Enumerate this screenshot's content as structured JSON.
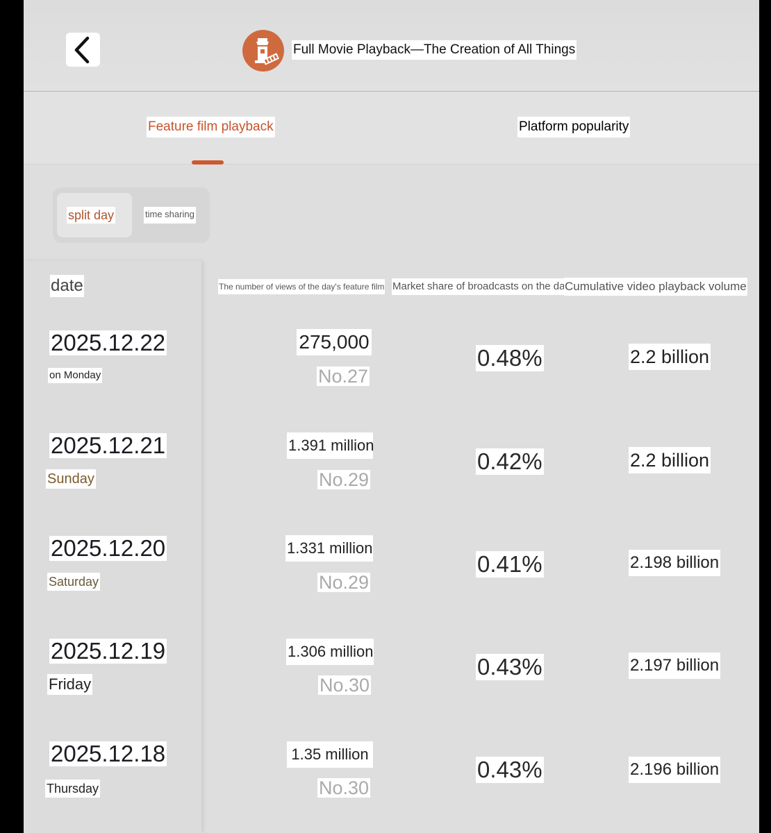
{
  "header": {
    "title": "Full Movie Playback—The Creation of All Things"
  },
  "tabs": [
    {
      "label": "Feature film playback",
      "active": true
    },
    {
      "label": "Platform popularity",
      "active": false
    }
  ],
  "segment": {
    "options": [
      "split day",
      "time sharing"
    ],
    "selected": "split day"
  },
  "columns": {
    "date": "date",
    "views": "The number of views of the day's feature film",
    "share": "Market share of broadcasts on the day",
    "cumulative": "Cumulative video playback volume"
  },
  "rows": [
    {
      "date": "2025.12.22",
      "day": "on Monday",
      "views": "275,000",
      "rank": "No.27",
      "share": "0.48%",
      "cumulative": "2.2 billion"
    },
    {
      "date": "2025.12.21",
      "day": "Sunday",
      "views": "1.391 million",
      "rank": "No.29",
      "share": "0.42%",
      "cumulative": "2.2 billion"
    },
    {
      "date": "2025.12.20",
      "day": "Saturday",
      "views": "1.331 million",
      "rank": "No.29",
      "share": "0.41%",
      "cumulative": "2.198 billion"
    },
    {
      "date": "2025.12.19",
      "day": "Friday",
      "views": "1.306 million",
      "rank": "No.30",
      "share": "0.43%",
      "cumulative": "2.197 billion"
    },
    {
      "date": "2025.12.18",
      "day": "Thursday",
      "views": "1.35 million",
      "rank": "No.30",
      "share": "0.43%",
      "cumulative": "2.196 billion"
    }
  ],
  "colors": {
    "accent": "#c6532b",
    "logo": "#cf6a3e",
    "background": "#dedede"
  },
  "icons": {
    "back": "chevron-left-icon",
    "logo": "lighthouse-film-logo"
  }
}
